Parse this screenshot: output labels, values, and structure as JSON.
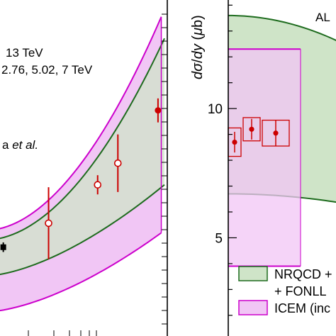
{
  "chart_data": [
    {
      "type": "area",
      "panel": "left",
      "annotations": {
        "energy_line1": "13 TeV",
        "energy_line2": "2.76, 5.02, 7 TeV",
        "model_line_prefix": "a ",
        "model_line_etal": "et al."
      },
      "x_scale": "log",
      "xlim": [
        1,
        14
      ],
      "ylim": [
        0,
        14
      ],
      "bands": [
        {
          "model": "ICEM",
          "x": [
            1.8,
            13.5
          ],
          "lower": [
            1.0,
            4.3
          ],
          "upper": [
            4.4,
            13.3
          ],
          "fill": "#f1c6f5",
          "edge": "#cc00cc"
        },
        {
          "model": "NRQCD",
          "x": [
            1.8,
            14
          ],
          "lower": [
            2.5,
            6.3
          ],
          "upper": [
            4.0,
            12.4
          ],
          "fill": "#cfe4c8",
          "edge": "#1d6b1d"
        }
      ],
      "points": [
        {
          "label": "black",
          "x": 2.2,
          "y": 3.7,
          "yerr": 0.2,
          "marker": "filled-square",
          "color": "#000000"
        },
        {
          "label": "open-1",
          "x": 3.7,
          "y": 4.7,
          "yerr": 1.5,
          "marker": "open-circle",
          "color": "#cc0000"
        },
        {
          "label": "open-2",
          "x": 6.5,
          "y": 6.3,
          "yerr": 0.4,
          "marker": "open-circle",
          "color": "#cc0000"
        },
        {
          "label": "open-3",
          "x": 8.2,
          "y": 7.2,
          "yerr": 1.2,
          "marker": "open-circle",
          "color": "#cc0000"
        },
        {
          "label": "filled",
          "x": 13.0,
          "y": 9.4,
          "yerr": 0.5,
          "marker": "filled-circle",
          "color": "#cc0000"
        }
      ]
    },
    {
      "type": "area",
      "panel": "right",
      "ylabel": "dσ/dy (μb)",
      "corner_label": "AL",
      "yticks": [
        5,
        10
      ],
      "ylim": [
        1.2,
        14.2
      ],
      "xlim": [
        0,
        1
      ],
      "bands": [
        {
          "model": "ICEM",
          "x": [
            0,
            0.6
          ],
          "lower": [
            3.9,
            3.9
          ],
          "upper": [
            12.3,
            12.3
          ],
          "fill": "#f1c6f5",
          "edge": "#cc00cc"
        },
        {
          "model": "NRQCD",
          "x": [
            0,
            1
          ],
          "lower": [
            6.7,
            6.3
          ],
          "upper": [
            13.6,
            12.4
          ],
          "fill": "#cfe4c8",
          "edge": "#1d6b1d"
        }
      ],
      "points": [
        {
          "label": "p1",
          "y": 8.7,
          "yerr": 0.4,
          "syst": 0.55,
          "marker": "filled-circle",
          "color": "#cc0000"
        },
        {
          "label": "p2",
          "y": 9.2,
          "yerr": 0.4,
          "syst": 0.45,
          "marker": "filled-circle",
          "color": "#cc0000"
        },
        {
          "label": "p3",
          "y": 9.05,
          "yerr": 0.5,
          "syst": 0.5,
          "marker": "filled-circle",
          "color": "#cc0000"
        }
      ],
      "legend": {
        "position": "bottom-right",
        "entries": [
          {
            "text": "NRQCD +",
            "fill": "#cfe4c8",
            "edge": "#1d6b1d"
          },
          {
            "text": "+ FONLL",
            "fill": null,
            "edge": null
          },
          {
            "text": "ICEM (inc",
            "fill": "#f1c6f5",
            "edge": "#cc00cc"
          }
        ]
      }
    }
  ]
}
